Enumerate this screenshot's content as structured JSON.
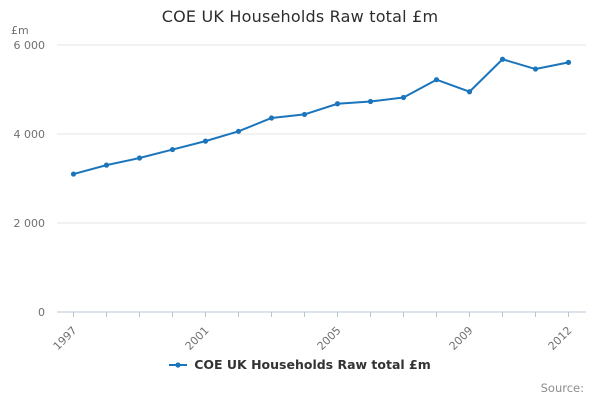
{
  "page": {
    "title": "COE UK Households Raw total £m",
    "source_label": "Source:"
  },
  "legend": {
    "label": "COE UK Households Raw total £m",
    "marker": "line-dot-marker"
  },
  "chart_data": {
    "type": "line",
    "title": "COE UK Households Raw total £m",
    "xlabel": "",
    "ylabel": "£m",
    "x": [
      1997,
      1998,
      1999,
      2000,
      2001,
      2002,
      2003,
      2004,
      2005,
      2006,
      2007,
      2008,
      2009,
      2010,
      2011,
      2012
    ],
    "values": [
      3100,
      3300,
      3460,
      3650,
      3840,
      4060,
      4360,
      4440,
      4680,
      4730,
      4820,
      5220,
      4950,
      5680,
      5460,
      5610
    ],
    "series_name": "COE UK Households Raw total £m",
    "ylim": [
      0,
      6000
    ],
    "yticks": [
      0,
      2000,
      4000,
      6000
    ],
    "ytick_labels": [
      "0",
      "2 000",
      "4 000",
      "6 000"
    ],
    "xticks_shown": [
      {
        "index": 0,
        "label": "1997"
      },
      {
        "index": 4,
        "label": "2001"
      },
      {
        "index": 8,
        "label": "2005"
      },
      {
        "index": 12,
        "label": "2009"
      },
      {
        "index": 15,
        "label": "2012"
      }
    ],
    "grid": true,
    "legend_position": "bottom-center",
    "marker": "dot",
    "colors": {
      "line": "#1b75bc",
      "grid": "#e6e6e6",
      "axis": "#b8c7d4",
      "tick_text": "#707070",
      "title_text": "#2d2d2d",
      "legend_text": "#333333",
      "source_text": "#8c8c8c"
    }
  }
}
